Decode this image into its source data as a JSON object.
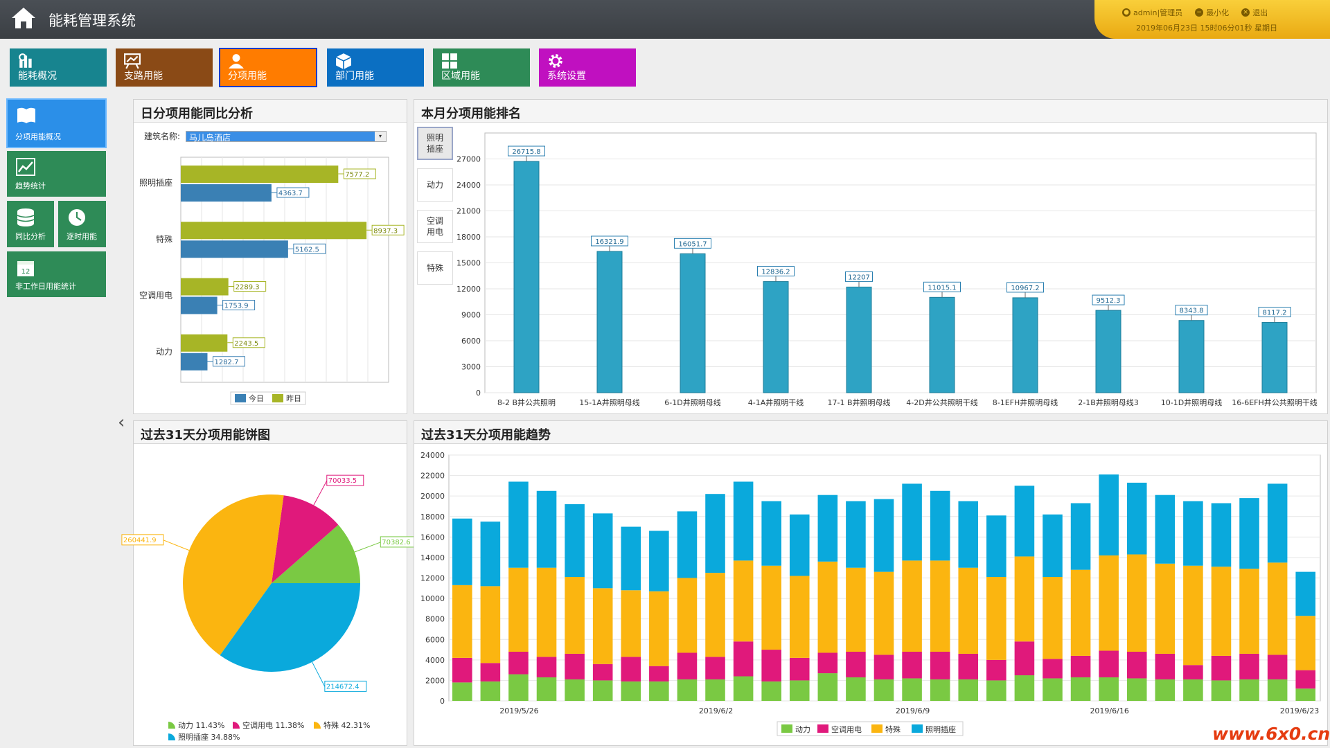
{
  "app": {
    "title": "能耗管理系统"
  },
  "user": {
    "account": "admin|管理员",
    "minimize": "最小化",
    "logout": "退出",
    "datetime": "2019年06月23日 15时06分01秒 星期日"
  },
  "nav": [
    {
      "label": "能耗概况",
      "color": "#17848f",
      "icon": "chart-icon"
    },
    {
      "label": "支路用能",
      "color": "#8a4a16",
      "icon": "board-icon"
    },
    {
      "label": "分项用能",
      "color": "#ff7c00",
      "icon": "user-icon",
      "active": true
    },
    {
      "label": "部门用能",
      "color": "#0b6fc2",
      "icon": "cube-icon"
    },
    {
      "label": "区域用能",
      "color": "#2e8b57",
      "icon": "grid-icon"
    },
    {
      "label": "系统设置",
      "color": "#c010c0",
      "icon": "gear-icon"
    }
  ],
  "side": [
    {
      "label": "分项用能概况",
      "color": "#2b8fe8",
      "icon": "book-icon"
    },
    {
      "label": "趋势统计",
      "color": "#2e8b57",
      "icon": "trend-icon"
    },
    {
      "label": "同比分析",
      "color": "#2e8b57",
      "icon": "database-icon"
    },
    {
      "label": "逐时用能",
      "color": "#2e8b57",
      "icon": "clock-icon"
    },
    {
      "label": "非工作日用能统计",
      "color": "#2e8b57",
      "icon": "calendar-icon",
      "day": "12"
    }
  ],
  "panels": {
    "daily": {
      "title": "日分项用能同比分析",
      "building_label": "建筑名称:",
      "building": "马儿岛酒店"
    },
    "rank": {
      "title": "本月分项用能排名",
      "tabs": [
        "照明插座",
        "动力",
        "空调用电",
        "特殊"
      ]
    },
    "pie": {
      "title": "过去31天分项用能饼图"
    },
    "trend": {
      "title": "过去31天分项用能趋势"
    }
  },
  "chart_data": [
    {
      "type": "bar",
      "orientation": "horizontal",
      "categories": [
        "照明插座",
        "特殊",
        "空调用电",
        "动力"
      ],
      "series": [
        {
          "name": "昨日",
          "color": "#a7b526",
          "values": [
            7577.2,
            8937.3,
            2289.3,
            2243.5
          ]
        },
        {
          "name": "今日",
          "color": "#3a80b4",
          "values": [
            4363.7,
            5162.5,
            1753.9,
            1282.7
          ]
        }
      ],
      "xlim": [
        0,
        10000
      ],
      "legend": "bottom"
    },
    {
      "type": "bar",
      "categories": [
        "8-2 B井公共照明",
        "15-1A井照明母线",
        "6-1D井照明母线",
        "4-1A井照明干线",
        "17-1 B井照明母线",
        "4-2D井公共照明干线",
        "8-1EFH井照明母线",
        "2-1B井照明母线3",
        "10-1D井照明母线",
        "16-6EFH井公共照明干线"
      ],
      "values": [
        26715.8,
        16321.9,
        16051.7,
        12836.2,
        12207,
        11015.1,
        10967.2,
        9512.3,
        8343.8,
        8117.2
      ],
      "value_labels": [
        "26715.8",
        "16321.9",
        "16051.7",
        "12836.2",
        "12207",
        "11015.1",
        "10967.2",
        "9512.3",
        "8343.8",
        "8117.2"
      ],
      "color": "#2ea3c4",
      "ylim": [
        0,
        30000
      ],
      "yticks": [
        0,
        3000,
        6000,
        9000,
        12000,
        15000,
        18000,
        21000,
        24000,
        27000
      ]
    },
    {
      "type": "pie",
      "slices": [
        {
          "name": "动力",
          "value": 70382.6,
          "label": "70382.6",
          "percent": "11.43%",
          "color": "#7ac943"
        },
        {
          "name": "空调用电",
          "value": 70033.5,
          "label": "70033.5",
          "percent": "11.38%",
          "color": "#e0197b"
        },
        {
          "name": "特殊",
          "value": 260441.9,
          "label": "260441.9",
          "percent": "42.31%",
          "color": "#fbb510"
        },
        {
          "name": "照明插座",
          "value": 214672.4,
          "label": "214672.4",
          "percent": "34.88%",
          "color": "#0aa9dc"
        }
      ],
      "legend": "bottom"
    },
    {
      "type": "bar",
      "stacked": true,
      "x_ticks": [
        "2019/5/26",
        "2019/6/2",
        "2019/6/9",
        "2019/6/16",
        "2019/6/23"
      ],
      "tick_index": [
        3,
        10,
        17,
        24,
        31
      ],
      "ylim": [
        0,
        24000
      ],
      "yticks": [
        0,
        2000,
        4000,
        6000,
        8000,
        10000,
        12000,
        14000,
        16000,
        18000,
        20000,
        22000,
        24000
      ],
      "series": [
        {
          "name": "动力",
          "color": "#7ac943",
          "values": [
            1800,
            1900,
            2600,
            2300,
            2100,
            2000,
            1900,
            1900,
            2100,
            2100,
            2400,
            1900,
            2000,
            2700,
            2300,
            2100,
            2200,
            2100,
            2100,
            2000,
            2500,
            2200,
            2300,
            2300,
            2200,
            2100,
            2100,
            2000,
            2100,
            2100,
            1200
          ]
        },
        {
          "name": "空调用电",
          "color": "#e0197b",
          "values": [
            2400,
            1800,
            2200,
            2000,
            2500,
            1600,
            2400,
            1500,
            2600,
            2200,
            3400,
            3100,
            2200,
            2000,
            2500,
            2400,
            2600,
            2700,
            2500,
            2000,
            3300,
            1900,
            2100,
            2600,
            2600,
            2500,
            1400,
            2400,
            2500,
            2400,
            1800
          ]
        },
        {
          "name": "特殊",
          "color": "#fbb510",
          "values": [
            7100,
            7500,
            8200,
            8700,
            7500,
            7400,
            6500,
            7300,
            7300,
            8200,
            7900,
            8200,
            8000,
            8900,
            8200,
            8100,
            8900,
            8900,
            8400,
            8100,
            8300,
            8000,
            8400,
            9300,
            9500,
            8800,
            9700,
            8700,
            8300,
            9000,
            5300
          ]
        },
        {
          "name": "照明插座",
          "color": "#0aa9dc",
          "values": [
            6500,
            6300,
            8400,
            7500,
            7100,
            7300,
            6200,
            5900,
            6500,
            7700,
            7700,
            6300,
            6000,
            6500,
            6500,
            7100,
            7500,
            6800,
            6500,
            6000,
            6900,
            6100,
            6500,
            7900,
            7000,
            6700,
            6300,
            6200,
            6900,
            7700,
            4300
          ]
        }
      ],
      "legend": "bottom"
    }
  ]
}
